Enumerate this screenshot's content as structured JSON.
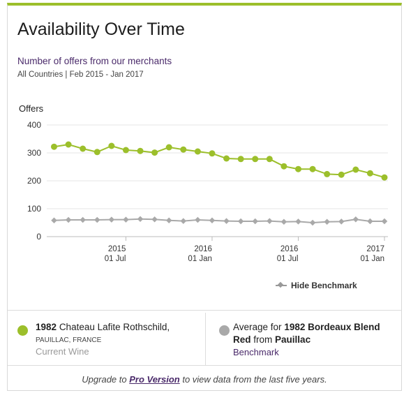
{
  "header": {
    "title": "Availability Over Time",
    "subtitle": "Number of offers from our merchants",
    "meta": "All Countries | Feb 2015 - Jan 2017"
  },
  "chart_data": {
    "type": "line",
    "ylabel": "Offers",
    "ylim": [
      0,
      400
    ],
    "yticks": [
      0,
      100,
      200,
      300,
      400
    ],
    "grid": true,
    "x_ticks": [
      {
        "top": "2015",
        "bottom": "01 Jul",
        "index": 5
      },
      {
        "top": "2016",
        "bottom": "01 Jan",
        "index": 11
      },
      {
        "top": "2016",
        "bottom": "01 Jul",
        "index": 17
      },
      {
        "top": "2017",
        "bottom": "01 Jan",
        "index": 23
      }
    ],
    "x": [
      "Feb 2015",
      "Mar 2015",
      "Apr 2015",
      "May 2015",
      "Jun 2015",
      "Jul 2015",
      "Aug 2015",
      "Sep 2015",
      "Oct 2015",
      "Nov 2015",
      "Dec 2015",
      "Jan 2016",
      "Feb 2016",
      "Mar 2016",
      "Apr 2016",
      "May 2016",
      "Jun 2016",
      "Jul 2016",
      "Aug 2016",
      "Sep 2016",
      "Oct 2016",
      "Nov 2016",
      "Dec 2016",
      "Jan 2017"
    ],
    "series": [
      {
        "color": "#9cbf2b",
        "values": [
          322,
          330,
          315,
          303,
          325,
          310,
          307,
          301,
          320,
          312,
          305,
          298,
          280,
          278,
          278,
          278,
          252,
          242,
          242,
          224,
          222,
          240,
          227,
          212
        ]
      },
      {
        "color": "#a9a9a9",
        "values": [
          58,
          60,
          60,
          60,
          61,
          61,
          63,
          62,
          58,
          56,
          60,
          58,
          56,
          55,
          55,
          56,
          53,
          54,
          50,
          53,
          54,
          62,
          55,
          55
        ]
      }
    ],
    "legend": "bottom-right"
  },
  "legend": {
    "toggle_label": "Hide Benchmark"
  },
  "wine": {
    "year": "1982",
    "name": "Chateau Lafite Rothschild,",
    "region": "PAUILLAC, FRANCE",
    "label": "Current Wine"
  },
  "benchmark": {
    "prefix": "Average for",
    "bold_name": "1982 Bordeaux Blend Red",
    "from_text": "from",
    "place": "Pauillac",
    "label": "Benchmark"
  },
  "footer": {
    "pre": "Upgrade to",
    "link": "Pro Version",
    "post": "to view data from the last five years."
  }
}
